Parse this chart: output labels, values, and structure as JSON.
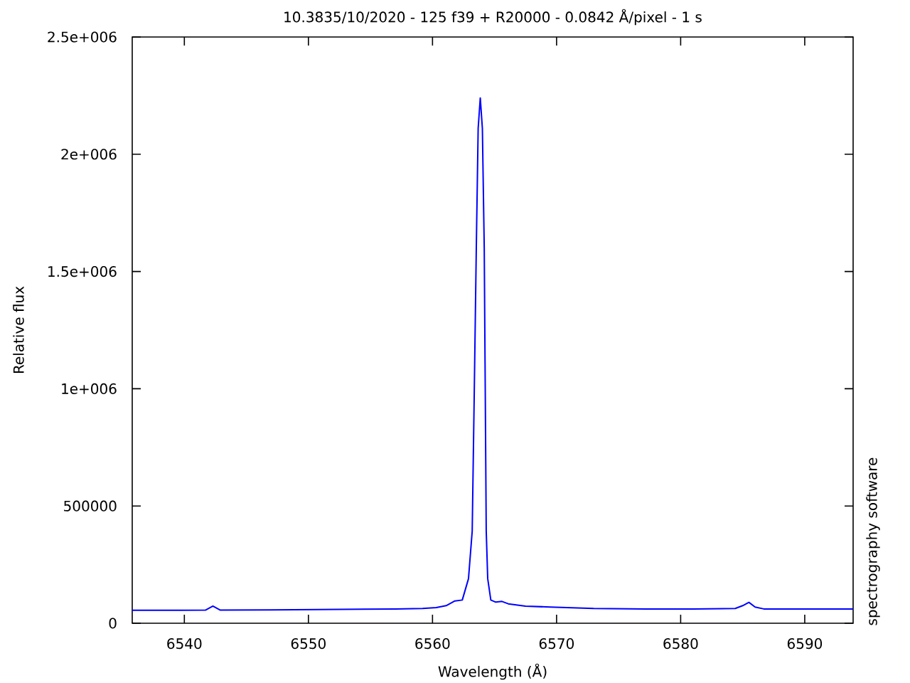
{
  "chart_data": {
    "type": "line",
    "title": "10.3835/10/2020 - 125 f39 + R20000 - 0.0842 Å/pixel - 1 s",
    "xlabel": "Wavelength (Å)",
    "ylabel": "Relative flux",
    "annotations": [
      "spectrography software"
    ],
    "color": "#0000ff",
    "x": [
      6535.8,
      6541.7,
      6542.3,
      6542.9,
      6547.0,
      6552.6,
      6557.0,
      6559.2,
      6560.3,
      6561.1,
      6561.8,
      6562.4,
      6562.9,
      6563.2,
      6563.37,
      6563.53,
      6563.68,
      6563.85,
      6564.02,
      6564.17,
      6564.25,
      6564.33,
      6564.45,
      6564.7,
      6565.1,
      6565.6,
      6566.1,
      6567.5,
      6569.5,
      6573.0,
      6577.2,
      6581.0,
      6584.4,
      6585.0,
      6585.5,
      6586.0,
      6586.7,
      6590.0,
      6593.9
    ],
    "values": [
      55000,
      56000,
      73000,
      56000,
      57000,
      59000,
      61000,
      63000,
      67000,
      75000,
      95000,
      99000,
      190000,
      393000,
      1000000,
      1600000,
      2110000,
      2240000,
      2110000,
      1600000,
      1000000,
      393000,
      190000,
      99000,
      90000,
      93000,
      83000,
      73000,
      69000,
      63000,
      61000,
      61000,
      63000,
      75000,
      89000,
      69000,
      61000,
      61000,
      61000
    ],
    "xlim": [
      6535.8,
      6593.9
    ],
    "ylim": [
      0,
      2500000
    ],
    "xticks": [
      6540,
      6550,
      6560,
      6570,
      6580,
      6590
    ],
    "yticks": [
      0,
      500000,
      {
        "value": 1000000,
        "label": "1e+006"
      },
      {
        "value": 1500000,
        "label": "1.5e+006"
      },
      {
        "value": 2000000,
        "label": "2e+006"
      },
      {
        "value": 2500000,
        "label": "2.5e+006"
      }
    ]
  }
}
